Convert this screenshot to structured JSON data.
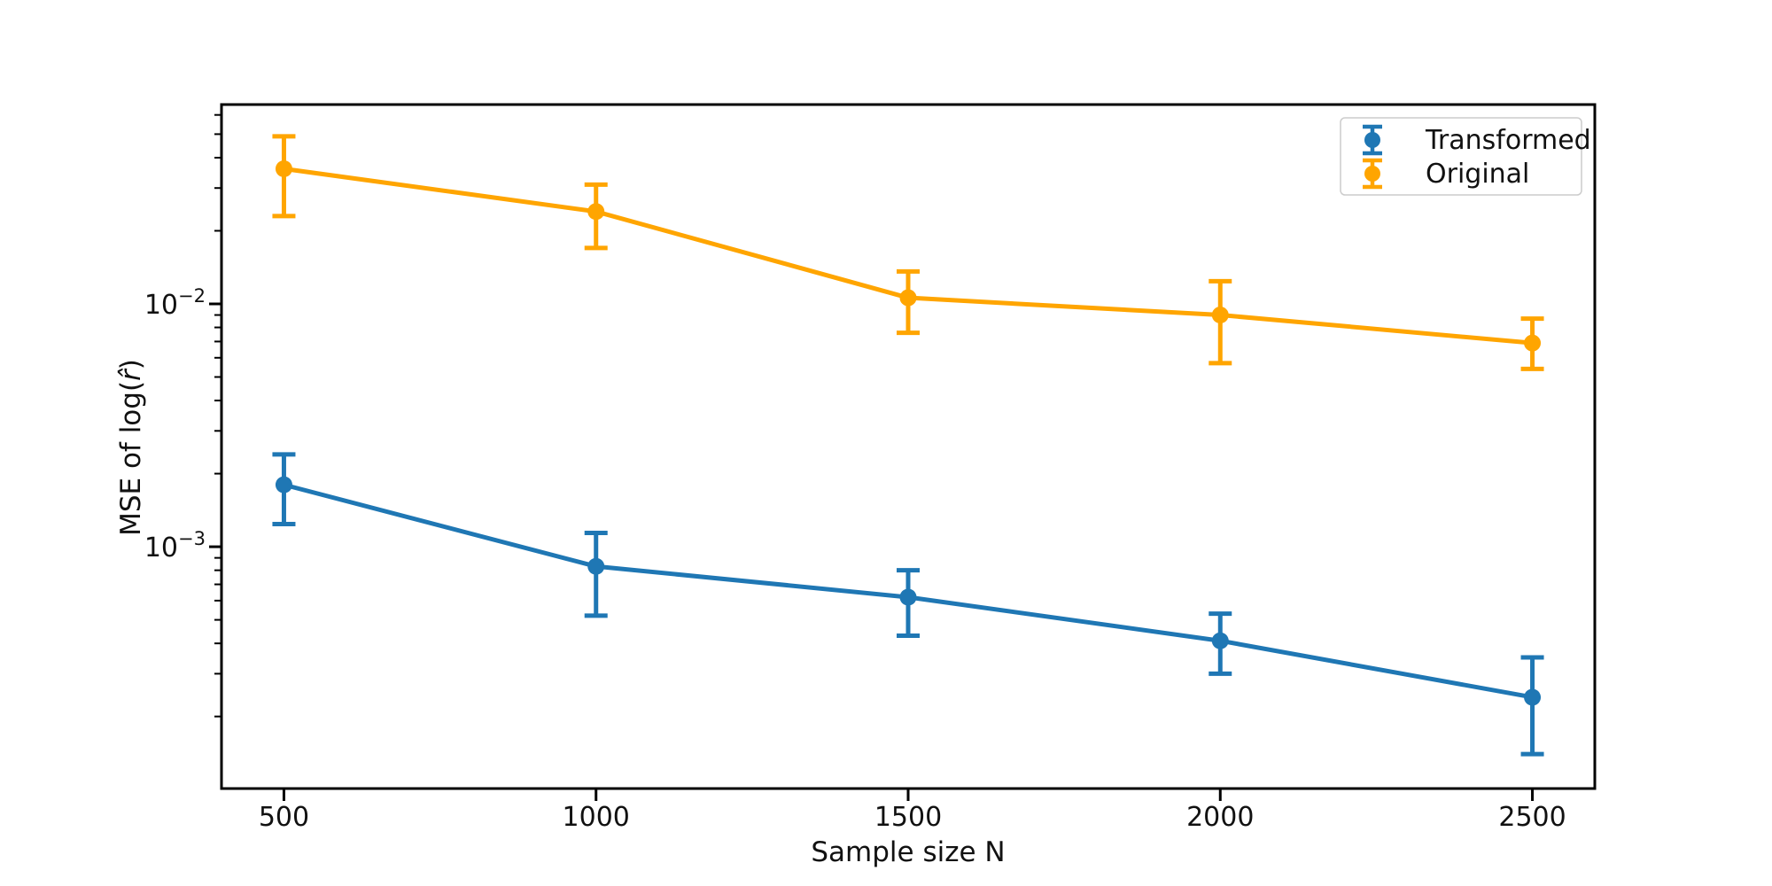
{
  "figure": {
    "background": "#ffffff",
    "axis_color": "#000000",
    "text_color": "#111111",
    "legend_border_color": "#cccccc",
    "legend_background": "#ffffff"
  },
  "chart_data": {
    "type": "line",
    "yscale": "log",
    "x": [
      500,
      1000,
      1500,
      2000,
      2500
    ],
    "series": [
      {
        "name": "Transformed",
        "color": "#1f77b4",
        "y": [
          0.0018,
          0.00083,
          0.00062,
          0.00041,
          0.00024
        ],
        "y_upper": [
          0.0024,
          0.00114,
          0.0008,
          0.00053,
          0.00035
        ],
        "y_lower": [
          0.00124,
          0.00052,
          0.00043,
          0.0003,
          0.00014
        ]
      },
      {
        "name": "Original",
        "color": "#ffa500",
        "y": [
          0.036,
          0.024,
          0.0106,
          0.009,
          0.0069
        ],
        "y_upper": [
          0.049,
          0.031,
          0.0136,
          0.0124,
          0.0087
        ],
        "y_lower": [
          0.023,
          0.017,
          0.0076,
          0.0057,
          0.0054
        ]
      }
    ],
    "title": "",
    "xlabel": "Sample size N",
    "ylabel": "MSE of log(r̂)",
    "ylabel_parts": {
      "prefix": "MSE of log(",
      "math": "r̂",
      "suffix": ")"
    },
    "xlim": [
      400,
      2600
    ],
    "ylim": [
      0.000101,
      0.0662
    ],
    "xtick_labels": [
      "500",
      "1000",
      "1500",
      "2000",
      "2500"
    ],
    "xtick_values": [
      500,
      1000,
      1500,
      2000,
      2500
    ],
    "yticks": [
      {
        "base": "10",
        "exponent": "−2",
        "value": 0.01
      },
      {
        "base": "10",
        "exponent": "−3",
        "value": 0.001
      }
    ],
    "grid": false,
    "legend": {
      "position": "upper right",
      "entries": [
        "Transformed",
        "Original"
      ]
    }
  }
}
